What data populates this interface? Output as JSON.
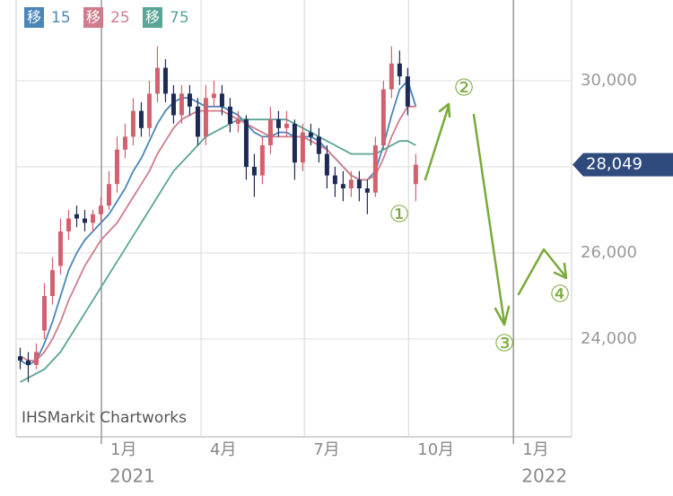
{
  "chart_data": {
    "type": "candlestick",
    "watermark": "IHSMarkit Chartworks",
    "x": [
      0,
      1,
      2,
      3,
      4,
      5,
      6,
      7,
      8,
      9,
      10,
      11,
      12,
      13,
      14,
      15,
      16,
      17,
      18,
      19,
      20,
      21,
      22,
      23,
      24,
      25,
      26,
      27,
      28,
      29,
      30,
      31,
      32,
      33,
      34,
      35,
      36,
      37,
      38,
      39,
      40,
      41,
      42,
      43,
      44,
      45,
      46,
      47,
      48,
      49
    ],
    "candles": {
      "up_color": "#d2616f",
      "down_color": "#1e2a55",
      "open": [
        23600,
        23500,
        23400,
        24200,
        25000,
        25700,
        26500,
        26900,
        26800,
        26700,
        26900,
        27100,
        27600,
        28400,
        28700,
        29300,
        28900,
        29700,
        30300,
        29700,
        29200,
        29700,
        29400,
        28700,
        29600,
        29700,
        29400,
        29000,
        29100,
        28000,
        27800,
        28500,
        29100,
        28900,
        29000,
        28100,
        28800,
        28700,
        28300,
        27800,
        27600,
        27500,
        27700,
        27500,
        27400,
        28500,
        29800,
        30400,
        30100,
        27600
      ],
      "high": [
        23800,
        23700,
        23900,
        25300,
        25900,
        26800,
        27000,
        27100,
        27000,
        27000,
        27300,
        27900,
        28700,
        29000,
        29600,
        29500,
        30000,
        30800,
        30500,
        29900,
        29900,
        29900,
        29600,
        29900,
        30000,
        29900,
        29600,
        29300,
        29200,
        28300,
        28700,
        29400,
        29300,
        29300,
        29100,
        29000,
        29000,
        28900,
        28500,
        28000,
        27900,
        27900,
        27900,
        27700,
        28700,
        30000,
        30800,
        30700,
        30300,
        28300
      ],
      "low": [
        23300,
        23000,
        23300,
        24000,
        24800,
        25500,
        26300,
        26600,
        26500,
        26500,
        26700,
        27000,
        27400,
        28200,
        28500,
        28700,
        28700,
        29500,
        29500,
        29000,
        29000,
        29200,
        28500,
        28500,
        29400,
        29200,
        28800,
        28800,
        27700,
        27300,
        27600,
        28300,
        28700,
        28700,
        27700,
        27900,
        28500,
        28100,
        27500,
        27300,
        27200,
        27300,
        27200,
        26900,
        27300,
        28400,
        29600,
        29900,
        29200,
        27200
      ],
      "close": [
        23500,
        23400,
        23700,
        25000,
        25600,
        26500,
        26800,
        26800,
        26700,
        26900,
        27100,
        27600,
        28400,
        28700,
        29300,
        28900,
        29700,
        30300,
        29700,
        29200,
        29700,
        29400,
        28700,
        29600,
        29700,
        29400,
        29000,
        29100,
        28000,
        27800,
        28500,
        29100,
        28900,
        29000,
        28100,
        28800,
        28700,
        28300,
        27800,
        27600,
        27500,
        27700,
        27500,
        27400,
        28500,
        29800,
        30400,
        30100,
        29400,
        28049
      ]
    },
    "series": [
      {
        "name": "15",
        "badge": "移",
        "color": "#4a86b8",
        "values": [
          23500,
          23400,
          23500,
          23900,
          24400,
          25000,
          25600,
          26000,
          26300,
          26500,
          26700,
          26900,
          27200,
          27500,
          27900,
          28200,
          28600,
          29000,
          29300,
          29500,
          29600,
          29600,
          29500,
          29400,
          29400,
          29400,
          29300,
          29200,
          29000,
          28800,
          28700,
          28700,
          28800,
          28800,
          28700,
          28700,
          28700,
          28600,
          28400,
          28200,
          28000,
          27800,
          27700,
          27700,
          27900,
          28500,
          29200,
          29800,
          30000,
          29400
        ]
      },
      {
        "name": "25",
        "badge": "移",
        "color": "#cf7d8c",
        "values": [
          23600,
          23500,
          23500,
          23700,
          24000,
          24400,
          24900,
          25300,
          25700,
          26000,
          26300,
          26500,
          26700,
          27000,
          27300,
          27600,
          27900,
          28300,
          28600,
          28900,
          29100,
          29200,
          29300,
          29300,
          29300,
          29300,
          29200,
          29100,
          29000,
          28900,
          28800,
          28700,
          28700,
          28700,
          28700,
          28700,
          28600,
          28500,
          28400,
          28200,
          28000,
          27800,
          27700,
          27700,
          27800,
          28200,
          28700,
          29100,
          29400,
          29400
        ]
      },
      {
        "name": "75",
        "badge": "移",
        "color": "#5aa596",
        "values": [
          23000,
          23100,
          23200,
          23300,
          23500,
          23700,
          24000,
          24300,
          24600,
          24900,
          25200,
          25500,
          25800,
          26100,
          26400,
          26700,
          27000,
          27300,
          27600,
          27900,
          28100,
          28300,
          28500,
          28700,
          28800,
          28900,
          29000,
          29100,
          29100,
          29100,
          29100,
          29100,
          29100,
          29100,
          29000,
          28900,
          28800,
          28700,
          28600,
          28500,
          28400,
          28300,
          28300,
          28300,
          28300,
          28400,
          28500,
          28600,
          28600,
          28500
        ]
      }
    ],
    "xlim": [
      -0.5,
      68.3
    ],
    "xticks": [
      {
        "value": 10.06,
        "label": "1月"
      },
      {
        "value": 22.4,
        "label": "4月"
      },
      {
        "value": 35.2,
        "label": "7月"
      },
      {
        "value": 48.1,
        "label": "10月"
      },
      {
        "value": 61.1,
        "label": "1月"
      }
    ],
    "year_labels": [
      {
        "value": 10.06,
        "label": "2021"
      },
      {
        "value": 61.1,
        "label": "2022"
      }
    ],
    "ylim": [
      21730,
      31875
    ],
    "yticks": [
      {
        "value": 24000,
        "label": "24,000"
      },
      {
        "value": 26000,
        "label": "26,000"
      },
      {
        "value": 28000,
        "label": "28,000"
      },
      {
        "value": 30000,
        "label": "30,000"
      }
    ],
    "last_price": {
      "value": 28049,
      "label": "28,049",
      "color": "#2f4a7c"
    },
    "grid": true,
    "annotations": [
      "①",
      "②",
      "③",
      "④"
    ]
  }
}
